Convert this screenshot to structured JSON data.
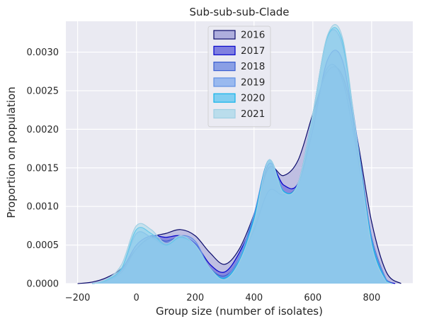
{
  "chart_data": {
    "type": "area",
    "title": "Sub-sub-sub-Clade",
    "xlabel": "Group size (number of isolates)",
    "ylabel": "Proportion on population",
    "xlim": [
      -240,
      940
    ],
    "ylim": [
      0,
      0.0034
    ],
    "xticks": [
      -200,
      0,
      200,
      400,
      600,
      800
    ],
    "xtick_labels": [
      "−200",
      "0",
      "200",
      "400",
      "600",
      "800"
    ],
    "yticks": [
      0,
      0.0005,
      0.001,
      0.0015,
      0.002,
      0.0025,
      0.003
    ],
    "ytick_labels": [
      "0.0000",
      "0.0005",
      "0.0010",
      "0.0015",
      "0.0020",
      "0.0025",
      "0.0030"
    ],
    "grid": true,
    "legend_position": "top-center",
    "series": [
      {
        "name": "2016",
        "fill": "#9a9ad6",
        "edge": "#0b0b6b",
        "points": [
          [
            -200,
            0
          ],
          [
            -150,
            2e-05
          ],
          [
            -100,
            8e-05
          ],
          [
            -50,
            0.0002
          ],
          [
            0,
            0.00045
          ],
          [
            50,
            0.0006
          ],
          [
            100,
            0.00065
          ],
          [
            150,
            0.0007
          ],
          [
            200,
            0.00062
          ],
          [
            250,
            0.0004
          ],
          [
            300,
            0.00025
          ],
          [
            350,
            0.00045
          ],
          [
            400,
            0.0009
          ],
          [
            450,
            0.0015
          ],
          [
            500,
            0.0014
          ],
          [
            550,
            0.0016
          ],
          [
            600,
            0.0022
          ],
          [
            650,
            0.00275
          ],
          [
            700,
            0.0027
          ],
          [
            750,
            0.0019
          ],
          [
            800,
            0.0008
          ],
          [
            850,
            0.00015
          ],
          [
            900,
            0.0
          ]
        ]
      },
      {
        "name": "2017",
        "fill": "#5b5bd9",
        "edge": "#0000cc",
        "points": [
          [
            -150,
            0
          ],
          [
            -100,
            5e-05
          ],
          [
            -50,
            0.00018
          ],
          [
            0,
            0.0005
          ],
          [
            50,
            0.00062
          ],
          [
            100,
            0.0006
          ],
          [
            150,
            0.00062
          ],
          [
            200,
            0.00052
          ],
          [
            250,
            0.00025
          ],
          [
            300,
            0.00015
          ],
          [
            350,
            0.0004
          ],
          [
            400,
            0.00085
          ],
          [
            450,
            0.00155
          ],
          [
            500,
            0.00128
          ],
          [
            550,
            0.0013
          ],
          [
            600,
            0.002
          ],
          [
            650,
            0.0029
          ],
          [
            700,
            0.0029
          ],
          [
            750,
            0.0018
          ],
          [
            800,
            0.0006
          ],
          [
            850,
            5e-05
          ],
          [
            880,
            0.0
          ]
        ]
      },
      {
        "name": "2018",
        "fill": "#6a86e0",
        "edge": "#3a5ed0",
        "points": [
          [
            -150,
            0
          ],
          [
            -100,
            4e-05
          ],
          [
            -50,
            0.00015
          ],
          [
            0,
            0.00045
          ],
          [
            50,
            0.0006
          ],
          [
            100,
            0.00055
          ],
          [
            150,
            0.0006
          ],
          [
            200,
            0.0005
          ],
          [
            250,
            0.0002
          ],
          [
            300,
            0.0001
          ],
          [
            350,
            0.0003
          ],
          [
            400,
            0.0007
          ],
          [
            450,
            0.0012
          ],
          [
            500,
            0.00115
          ],
          [
            550,
            0.0013
          ],
          [
            600,
            0.0021
          ],
          [
            650,
            0.0028
          ],
          [
            700,
            0.00265
          ],
          [
            750,
            0.0017
          ],
          [
            800,
            0.0006
          ],
          [
            850,
            5e-05
          ],
          [
            870,
            0.0
          ]
        ]
      },
      {
        "name": "2019",
        "fill": "#7ea8ee",
        "edge": "#5f8fe3",
        "points": [
          [
            -150,
            0
          ],
          [
            -100,
            5e-05
          ],
          [
            -50,
            0.0002
          ],
          [
            0,
            0.00065
          ],
          [
            50,
            0.0006
          ],
          [
            100,
            0.0005
          ],
          [
            150,
            0.00062
          ],
          [
            200,
            0.00055
          ],
          [
            250,
            0.0002
          ],
          [
            300,
            8e-05
          ],
          [
            350,
            0.00035
          ],
          [
            400,
            0.0009
          ],
          [
            450,
            0.0016
          ],
          [
            500,
            0.0012
          ],
          [
            550,
            0.0013
          ],
          [
            600,
            0.0022
          ],
          [
            650,
            0.0032
          ],
          [
            700,
            0.0031
          ],
          [
            750,
            0.0019
          ],
          [
            800,
            0.0006
          ],
          [
            850,
            5e-05
          ],
          [
            870,
            0.0
          ]
        ]
      },
      {
        "name": "2020",
        "fill": "#5ec4f0",
        "edge": "#12b3ea",
        "points": [
          [
            -150,
            0
          ],
          [
            -100,
            5e-05
          ],
          [
            -50,
            0.0002
          ],
          [
            0,
            0.0007
          ],
          [
            50,
            0.00065
          ],
          [
            100,
            0.0005
          ],
          [
            150,
            0.0006
          ],
          [
            200,
            0.0005
          ],
          [
            250,
            0.0002
          ],
          [
            300,
            7e-05
          ],
          [
            350,
            0.0003
          ],
          [
            400,
            0.00085
          ],
          [
            450,
            0.0016
          ],
          [
            500,
            0.0012
          ],
          [
            550,
            0.0013
          ],
          [
            600,
            0.0022
          ],
          [
            650,
            0.0032
          ],
          [
            700,
            0.00315
          ],
          [
            750,
            0.00185
          ],
          [
            800,
            0.00055
          ],
          [
            850,
            3e-05
          ],
          [
            870,
            0.0
          ]
        ]
      },
      {
        "name": "2021",
        "fill": "#a9d8ea",
        "edge": "#9fcfe4",
        "points": [
          [
            -150,
            0
          ],
          [
            -100,
            6e-05
          ],
          [
            -50,
            0.00025
          ],
          [
            0,
            0.00075
          ],
          [
            50,
            0.0007
          ],
          [
            100,
            0.00052
          ],
          [
            150,
            0.00062
          ],
          [
            200,
            0.0005
          ],
          [
            250,
            0.0002
          ],
          [
            300,
            5e-05
          ],
          [
            350,
            0.00028
          ],
          [
            400,
            0.0008
          ],
          [
            450,
            0.0016
          ],
          [
            500,
            0.00118
          ],
          [
            550,
            0.0013
          ],
          [
            600,
            0.0022
          ],
          [
            650,
            0.00322
          ],
          [
            700,
            0.0032
          ],
          [
            750,
            0.00185
          ],
          [
            800,
            0.0005
          ],
          [
            850,
            2e-05
          ],
          [
            870,
            0.0
          ]
        ]
      }
    ]
  }
}
